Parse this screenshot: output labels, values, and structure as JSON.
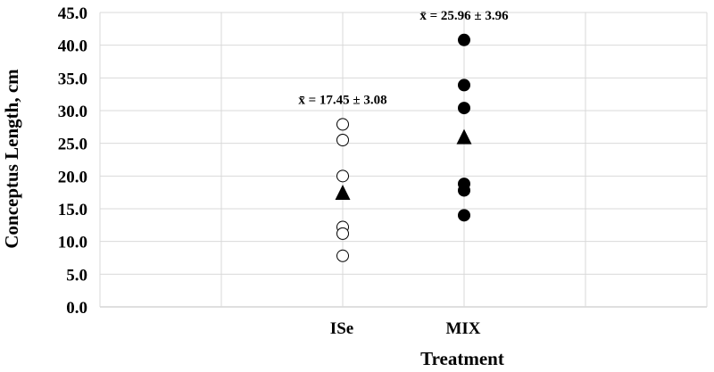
{
  "chart_data": {
    "type": "scatter",
    "title": "",
    "xlabel": "Treatment",
    "ylabel": "Conceptus Length, cm",
    "ylim": [
      0,
      45
    ],
    "yticks": [
      "0.0",
      "5.0",
      "10.0",
      "15.0",
      "20.0",
      "25.0",
      "30.0",
      "35.0",
      "40.0",
      "45.0"
    ],
    "grid": true,
    "categories": [
      "ISe",
      "MIX"
    ],
    "series": [
      {
        "category": "ISe",
        "marker": "open-circle",
        "values": [
          27.9,
          25.5,
          20.0,
          12.2,
          11.2,
          7.8
        ]
      },
      {
        "category": "MIX",
        "marker": "filled-circle",
        "values": [
          40.8,
          33.9,
          30.4,
          18.8,
          17.8,
          14.0
        ]
      }
    ],
    "means": [
      {
        "category": "ISe",
        "marker": "triangle",
        "value": 17.45,
        "label": "x̄ = 17.45 ± 3.08"
      },
      {
        "category": "MIX",
        "marker": "triangle",
        "value": 25.96,
        "label": "x̄ = 25.96 ± 3.96"
      }
    ]
  }
}
